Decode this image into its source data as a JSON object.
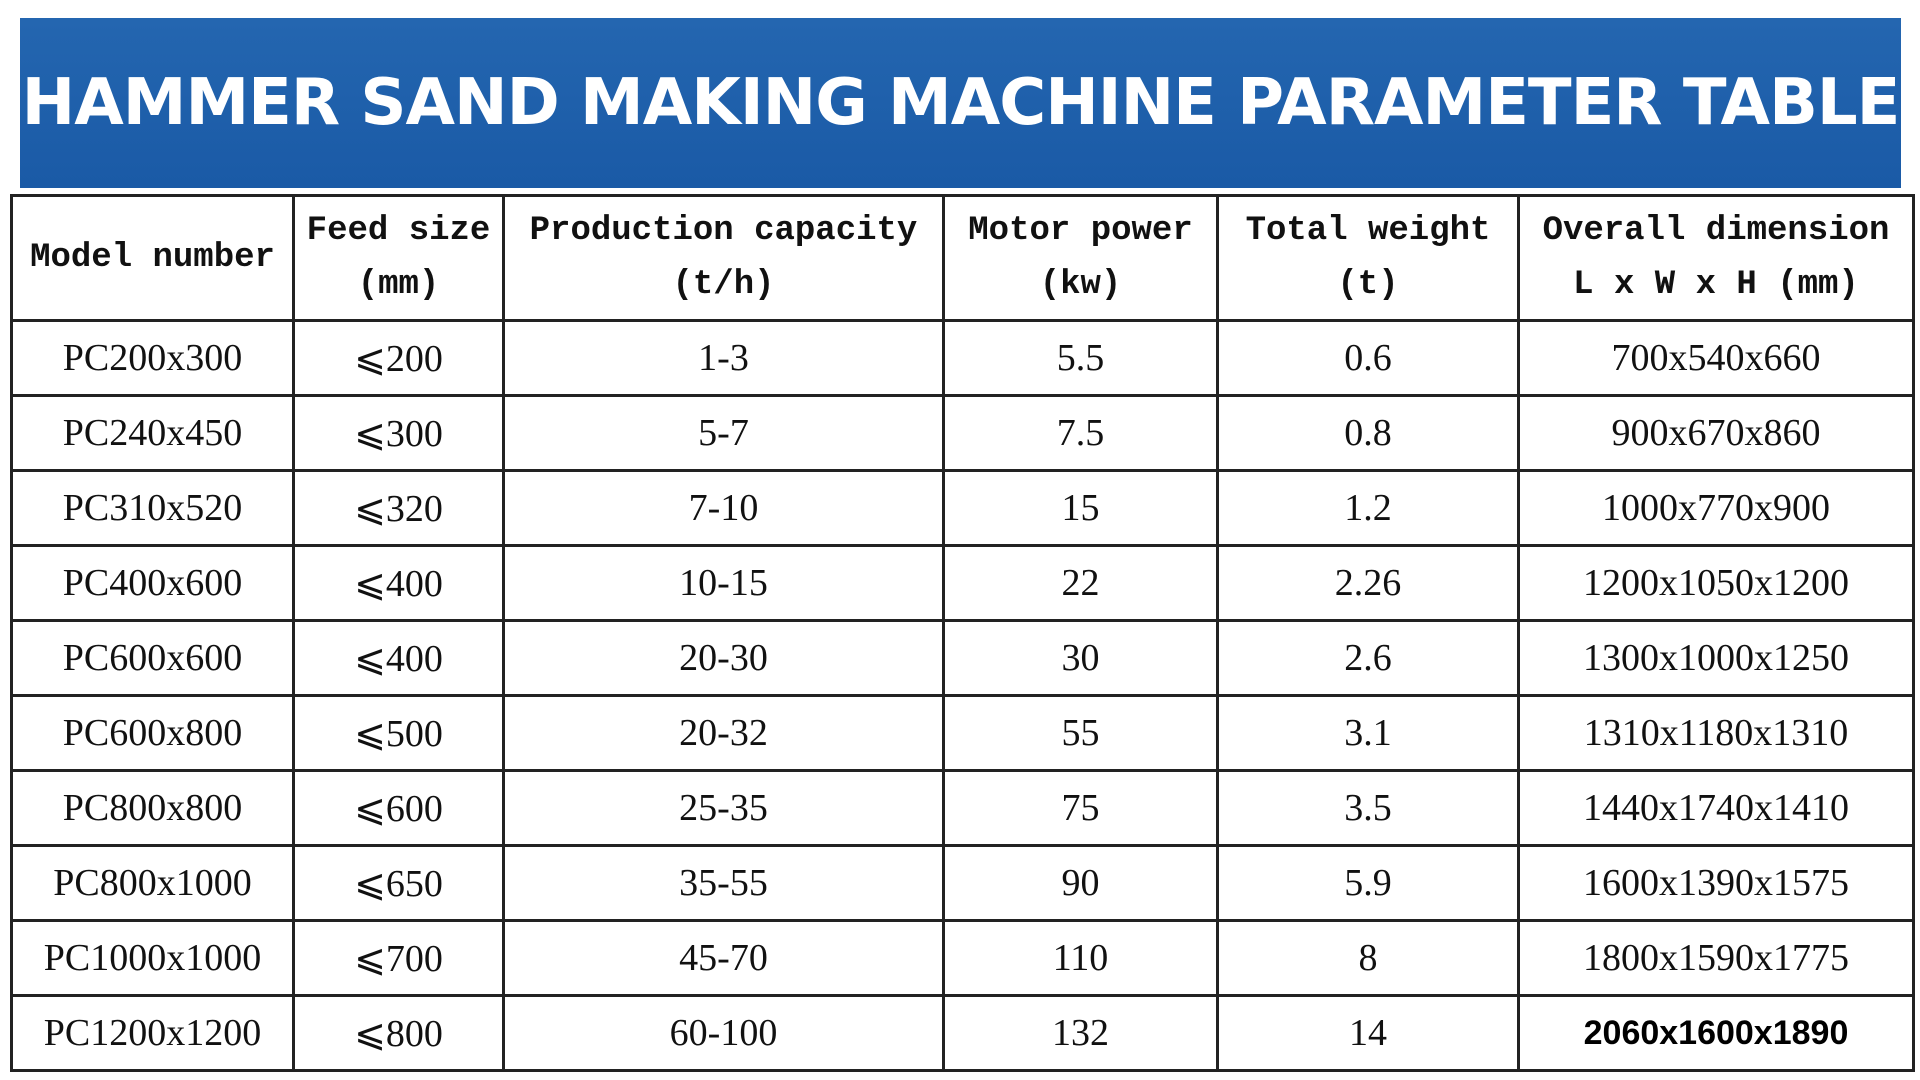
{
  "header": {
    "title": "HAMMER SAND MAKING MACHINE PARAMETER TABLE"
  },
  "table": {
    "columns": [
      [
        "Model number"
      ],
      [
        "Feed size",
        "(mm)"
      ],
      [
        "Production capacity",
        "(t/h)"
      ],
      [
        "Motor power",
        "(kw)"
      ],
      [
        "Total weight",
        "(t)"
      ],
      [
        "Overall dimension",
        "L x W x H (mm)"
      ]
    ],
    "rows": [
      [
        "PC200x300",
        "⩽200",
        "1-3",
        "5.5",
        "0.6",
        "700x540x660"
      ],
      [
        "PC240x450",
        "⩽300",
        "5-7",
        "7.5",
        "0.8",
        "900x670x860"
      ],
      [
        "PC310x520",
        "⩽320",
        "7-10",
        "15",
        "1.2",
        "1000x770x900"
      ],
      [
        "PC400x600",
        "⩽400",
        "10-15",
        "22",
        "2.26",
        "1200x1050x1200"
      ],
      [
        "PC600x600",
        "⩽400",
        "20-30",
        "30",
        "2.6",
        "1300x1000x1250"
      ],
      [
        "PC600x800",
        "⩽500",
        "20-32",
        "55",
        "3.1",
        "1310x1180x1310"
      ],
      [
        "PC800x800",
        "⩽600",
        "25-35",
        "75",
        "3.5",
        "1440x1740x1410"
      ],
      [
        "PC800x1000",
        "⩽650",
        "35-55",
        "90",
        "5.9",
        "1600x1390x1575"
      ],
      [
        "PC1000x1000",
        "⩽700",
        "45-70",
        "110",
        "8",
        "1800x1590x1775"
      ],
      [
        "PC1200x1200",
        "⩽800",
        "60-100",
        "132",
        "14",
        "2060x1600x1890"
      ]
    ]
  }
}
